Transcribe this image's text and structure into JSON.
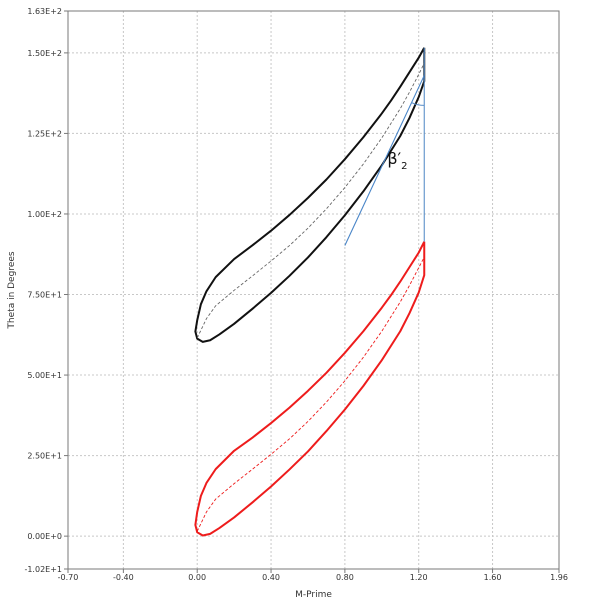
{
  "chart_data": {
    "type": "line",
    "xlabel": "M-Prime",
    "ylabel": "Theta in Degrees",
    "xlim": [
      -0.7,
      1.96
    ],
    "ylim": [
      -10.2,
      163
    ],
    "grid": true,
    "x_ticks": [
      {
        "value": -0.7,
        "label": "-0.70"
      },
      {
        "value": -0.4,
        "label": "-0.40"
      },
      {
        "value": 0.0,
        "label": "0.00"
      },
      {
        "value": 0.4,
        "label": "0.40"
      },
      {
        "value": 0.8,
        "label": "0.80"
      },
      {
        "value": 1.2,
        "label": "1.20"
      },
      {
        "value": 1.6,
        "label": "1.60"
      },
      {
        "value": 1.96,
        "label": "1.96"
      }
    ],
    "y_ticks": [
      {
        "value": -10.2,
        "label": "-1.02E+1"
      },
      {
        "value": 0,
        "label": "0.00E+0"
      },
      {
        "value": 25,
        "label": "2.50E+1"
      },
      {
        "value": 50,
        "label": "5.00E+1"
      },
      {
        "value": 75,
        "label": "7.50E+1"
      },
      {
        "value": 100,
        "label": "1.00E+2"
      },
      {
        "value": 125,
        "label": "1.25E+2"
      },
      {
        "value": 150,
        "label": "1.50E+2"
      },
      {
        "value": 163,
        "label": "1.63E+2"
      }
    ],
    "x_gridlines": [
      -0.4,
      0.0,
      0.4,
      0.8,
      1.2,
      1.6
    ],
    "y_gridlines": [
      0,
      25,
      50,
      75,
      100,
      125,
      150
    ],
    "series": [
      {
        "color": "#111111",
        "style": "solid",
        "points": [
          [
            1.23,
            151.6
          ],
          [
            1.2,
            148.5
          ],
          [
            1.15,
            144.0
          ],
          [
            1.1,
            139.5
          ],
          [
            1.05,
            135.2
          ],
          [
            1.0,
            131.2
          ],
          [
            0.9,
            123.8
          ],
          [
            0.8,
            117.0
          ],
          [
            0.7,
            110.7
          ],
          [
            0.6,
            105.0
          ],
          [
            0.5,
            99.7
          ],
          [
            0.4,
            94.8
          ],
          [
            0.3,
            90.3
          ],
          [
            0.2,
            86.0
          ],
          [
            0.1,
            80.4
          ],
          [
            0.05,
            76.0
          ],
          [
            0.02,
            72.0
          ],
          [
            0.0,
            67.0
          ],
          [
            -0.01,
            63.5
          ],
          [
            0.0,
            61.3
          ],
          [
            0.03,
            60.3
          ],
          [
            0.07,
            60.8
          ],
          [
            0.12,
            62.6
          ],
          [
            0.2,
            65.9
          ],
          [
            0.3,
            70.6
          ],
          [
            0.4,
            75.5
          ],
          [
            0.5,
            80.8
          ],
          [
            0.6,
            86.5
          ],
          [
            0.7,
            92.8
          ],
          [
            0.8,
            99.6
          ],
          [
            0.9,
            107.0
          ],
          [
            1.0,
            115.1
          ],
          [
            1.1,
            124.2
          ],
          [
            1.15,
            129.8
          ],
          [
            1.2,
            136.3
          ],
          [
            1.23,
            141.2
          ],
          [
            1.23,
            151.6
          ]
        ]
      },
      {
        "color": "#666666",
        "style": "dashed",
        "points": [
          [
            0.0,
            61.5
          ],
          [
            0.05,
            67.5
          ],
          [
            0.1,
            71.5
          ],
          [
            0.2,
            76.3
          ],
          [
            0.3,
            80.8
          ],
          [
            0.4,
            85.4
          ],
          [
            0.5,
            90.2
          ],
          [
            0.6,
            95.6
          ],
          [
            0.7,
            101.6
          ],
          [
            0.8,
            108.2
          ],
          [
            0.9,
            115.5
          ],
          [
            1.0,
            123.6
          ],
          [
            1.1,
            132.7
          ],
          [
            1.15,
            137.8
          ],
          [
            1.2,
            143.3
          ],
          [
            1.23,
            146.8
          ]
        ]
      },
      {
        "color": "#ee1c1c",
        "style": "solid",
        "points": [
          [
            1.23,
            91.4
          ],
          [
            1.2,
            88.0
          ],
          [
            1.15,
            83.5
          ],
          [
            1.1,
            79.0
          ],
          [
            1.05,
            74.8
          ],
          [
            1.0,
            70.9
          ],
          [
            0.9,
            63.6
          ],
          [
            0.8,
            56.9
          ],
          [
            0.7,
            50.7
          ],
          [
            0.6,
            45.1
          ],
          [
            0.5,
            39.9
          ],
          [
            0.4,
            35.1
          ],
          [
            0.3,
            30.6
          ],
          [
            0.2,
            26.5
          ],
          [
            0.1,
            20.8
          ],
          [
            0.05,
            16.5
          ],
          [
            0.02,
            12.5
          ],
          [
            0.0,
            7.5
          ],
          [
            -0.01,
            3.5
          ],
          [
            0.0,
            1.2
          ],
          [
            0.03,
            0.2
          ],
          [
            0.07,
            0.7
          ],
          [
            0.12,
            2.5
          ],
          [
            0.2,
            5.8
          ],
          [
            0.3,
            10.5
          ],
          [
            0.4,
            15.4
          ],
          [
            0.5,
            20.7
          ],
          [
            0.6,
            26.3
          ],
          [
            0.7,
            32.6
          ],
          [
            0.8,
            39.3
          ],
          [
            0.9,
            46.6
          ],
          [
            1.0,
            54.6
          ],
          [
            1.1,
            63.6
          ],
          [
            1.15,
            69.2
          ],
          [
            1.2,
            75.6
          ],
          [
            1.23,
            81.0
          ],
          [
            1.23,
            91.4
          ]
        ]
      },
      {
        "color": "#ee1c1c",
        "style": "dashed",
        "points": [
          [
            0.0,
            1.5
          ],
          [
            0.05,
            7.5
          ],
          [
            0.1,
            11.5
          ],
          [
            0.2,
            16.3
          ],
          [
            0.3,
            20.8
          ],
          [
            0.4,
            25.4
          ],
          [
            0.5,
            30.2
          ],
          [
            0.6,
            35.6
          ],
          [
            0.7,
            41.6
          ],
          [
            0.8,
            48.2
          ],
          [
            0.9,
            55.5
          ],
          [
            1.0,
            63.6
          ],
          [
            1.1,
            72.7
          ],
          [
            1.15,
            77.8
          ],
          [
            1.2,
            83.3
          ],
          [
            1.23,
            86.6
          ]
        ]
      },
      {
        "color": "#5b8fc9",
        "style": "solid",
        "points": [
          [
            1.23,
            91.4
          ],
          [
            1.23,
            151.6
          ]
        ]
      },
      {
        "color": "#4a86c8",
        "style": "solid",
        "points": [
          [
            0.8,
            90.2
          ],
          [
            1.23,
            143.0
          ]
        ]
      }
    ],
    "annotation": {
      "text": "β′",
      "subscript": "2",
      "x": 1.03,
      "y": 115.5
    },
    "angle_arc": {
      "center_x": 1.23,
      "center_y": 143.0,
      "color": "#5b8fc9"
    }
  }
}
